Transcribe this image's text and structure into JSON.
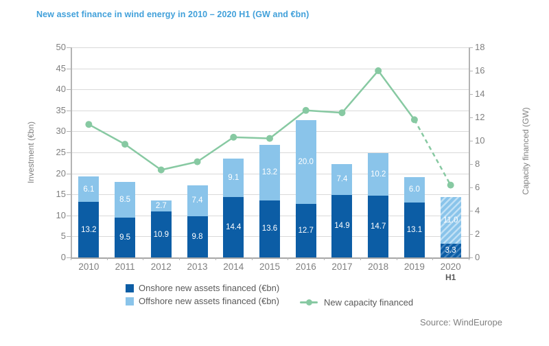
{
  "chart_data": {
    "type": "bar",
    "subtype": "stacked-bars-with-line-overlay",
    "title": "New asset finance in wind energy in 2010 – 2020 H1 (GW and €bn)",
    "categories": [
      "2010",
      "2011",
      "2012",
      "2013",
      "2014",
      "2015",
      "2016",
      "2017",
      "2018",
      "2019",
      "2020"
    ],
    "last_category_sublabel": "H1",
    "series": [
      {
        "name": "Onshore new assets financed (€bn)",
        "type": "bar",
        "stack": "investment",
        "axis": "left",
        "values": [
          13.2,
          9.5,
          10.9,
          9.8,
          14.4,
          13.6,
          12.7,
          14.9,
          14.7,
          13.1,
          3.3
        ]
      },
      {
        "name": "Offshore new assets financed (€bn)",
        "type": "bar",
        "stack": "investment",
        "axis": "left",
        "values": [
          6.1,
          8.5,
          2.7,
          7.4,
          9.1,
          13.2,
          20.0,
          7.4,
          10.2,
          6.0,
          11.0
        ]
      },
      {
        "name": "New capacity financed",
        "type": "line",
        "axis": "right",
        "estimated": true,
        "values": [
          11.4,
          9.7,
          7.5,
          8.2,
          10.3,
          10.2,
          12.6,
          12.4,
          16.0,
          11.8,
          6.2
        ],
        "dashed_from_index": 9
      }
    ],
    "left_axis": {
      "label": "Investment (€bn)",
      "min": 0,
      "max": 50,
      "step": 5,
      "ticks": [
        0,
        5,
        10,
        15,
        20,
        25,
        30,
        35,
        40,
        45,
        50
      ]
    },
    "right_axis": {
      "label": "Capacity financed (GW)",
      "min": 0,
      "max": 18,
      "step": 2,
      "ticks": [
        0,
        2,
        4,
        6,
        8,
        10,
        12,
        14,
        16,
        18
      ]
    },
    "hatched_category": "2020",
    "grid": "horizontal",
    "legend_position": "bottom"
  },
  "legend": {
    "onshore": "Onshore new assets financed (€bn)",
    "offshore": "Offshore new assets financed (€bn)",
    "line": "New capacity financed"
  },
  "source": "Source: WindEurope",
  "colors": {
    "onshore": "#0c5da5",
    "offshore": "#8ac4ea",
    "line": "#87c9a2",
    "title": "#41a0da",
    "axis_text": "#7f7f7f",
    "legend_text": "#595959",
    "gridline": "#d9d9d9",
    "axis_line": "#b3b3b3",
    "bar_label": "#ffffff",
    "source_text": "#808080"
  }
}
